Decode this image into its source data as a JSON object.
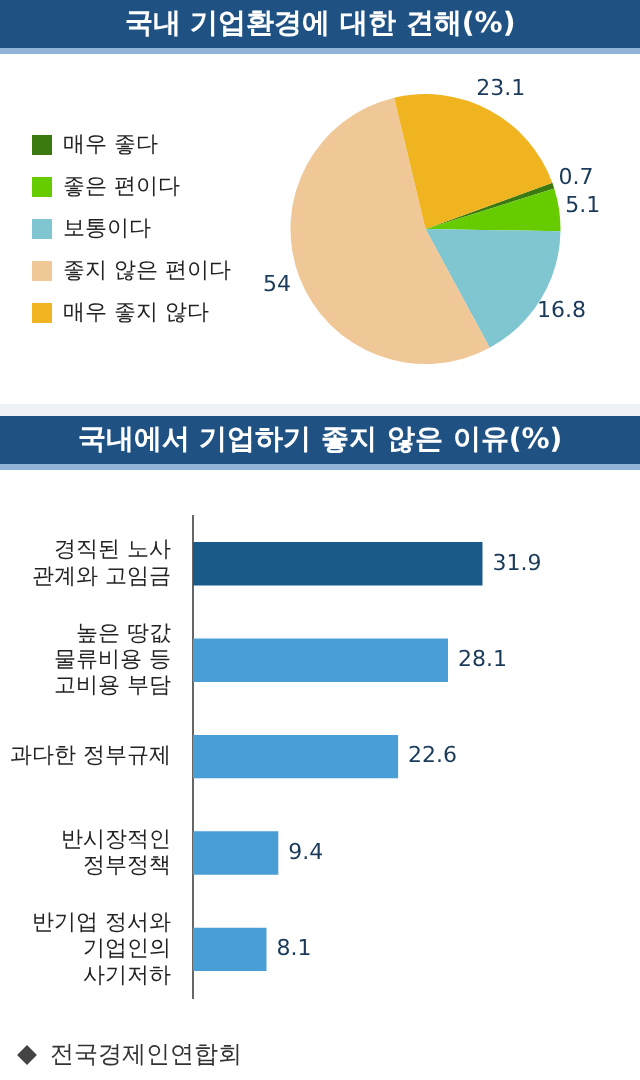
{
  "chart_data": [
    {
      "type": "pie",
      "title": "국내 기업환경에 대한 견해(%)",
      "categories": [
        "매우 좋다",
        "좋은 편이다",
        "보통이다",
        "좋지 않은 편이다",
        "매우 좋지 않다"
      ],
      "values": [
        0.7,
        5.1,
        16.8,
        54,
        23.1
      ],
      "colors": [
        "#3a7a10",
        "#66cc00",
        "#7fc6d0",
        "#f0c898",
        "#f0b420"
      ],
      "data_labels": true,
      "legend": "left"
    },
    {
      "type": "bar",
      "orientation": "horizontal",
      "title": "국내에서 기업하기 좋지 않은 이유(%)",
      "categories": [
        "경직된 노사\n관계와 고임금",
        "높은 땅값\n물류비용 등\n고비용 부담",
        "과다한 정부규제",
        "반시장적인\n정부정책",
        "반기업 정서와\n기업인의\n사기저하"
      ],
      "values": [
        31.9,
        28.1,
        22.6,
        9.4,
        8.1
      ],
      "colors": [
        "#1a5a8a",
        "#4a9ed6",
        "#4a9ed6",
        "#4a9ed6",
        "#4a9ed6"
      ],
      "data_labels": true,
      "annotations": [
        "전국경제인연합회"
      ]
    }
  ]
}
